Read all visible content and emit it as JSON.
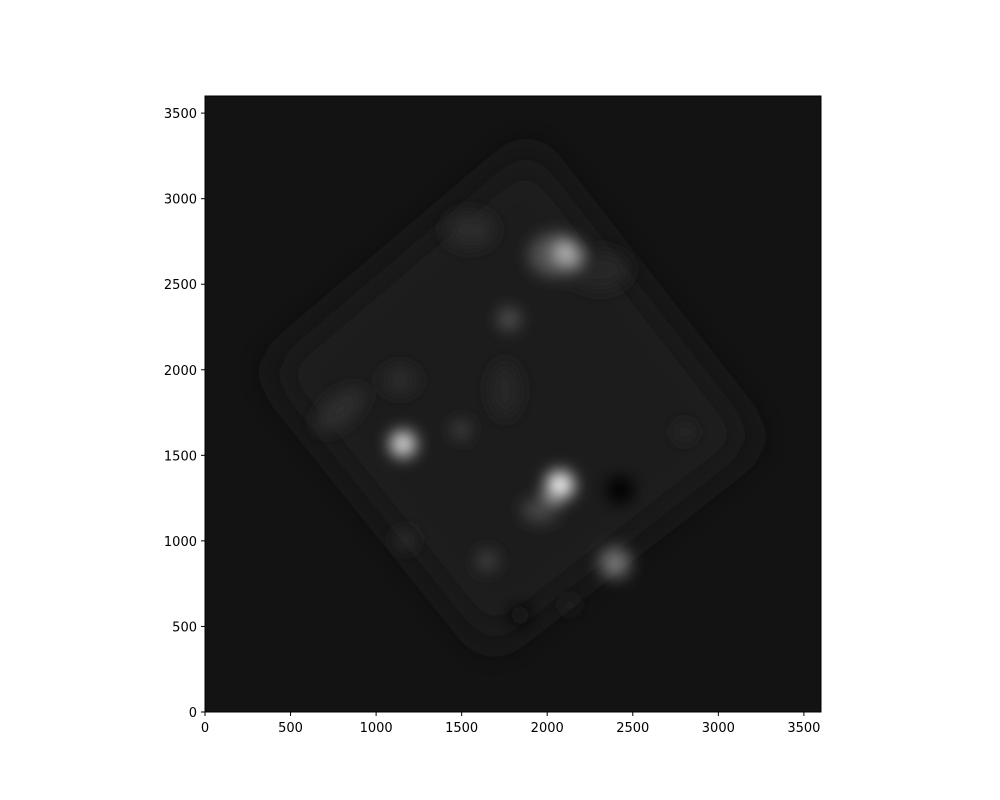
{
  "chart_data": {
    "type": "image",
    "cmap": "gray",
    "xlim": [
      0,
      3600
    ],
    "ylim": [
      0,
      3600
    ],
    "xticks": [
      0,
      500,
      1000,
      1500,
      2000,
      2500,
      3000,
      3500
    ],
    "yticks": [
      0,
      500,
      1000,
      1500,
      2000,
      2500,
      3000,
      3500
    ]
  }
}
